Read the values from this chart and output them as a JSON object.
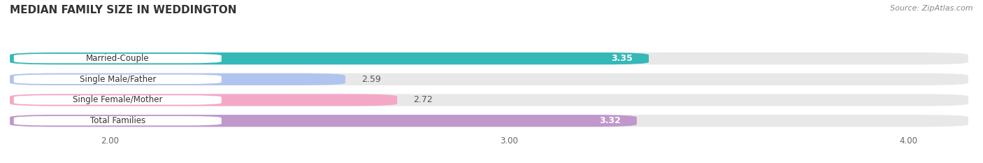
{
  "title": "MEDIAN FAMILY SIZE IN WEDDINGTON",
  "source": "Source: ZipAtlas.com",
  "categories": [
    "Married-Couple",
    "Single Male/Father",
    "Single Female/Mother",
    "Total Families"
  ],
  "values": [
    3.35,
    2.59,
    2.72,
    3.32
  ],
  "bar_colors": [
    "#35b8b8",
    "#b0c4ee",
    "#f4a8c8",
    "#c098cc"
  ],
  "value_label_colors": [
    "#ffffff",
    "#555555",
    "#555555",
    "#ffffff"
  ],
  "xmin": 1.75,
  "xmax": 4.15,
  "xticks": [
    2.0,
    3.0,
    4.0
  ],
  "xtick_labels": [
    "2.00",
    "3.00",
    "4.00"
  ],
  "background_color": "#ffffff",
  "bar_bg_color": "#e8e8e8",
  "grid_color": "#dddddd",
  "title_fontsize": 11,
  "source_fontsize": 8,
  "val_label_fontsize": 9,
  "cat_label_fontsize": 8.5,
  "bar_height": 0.58,
  "bar_gap": 0.42
}
